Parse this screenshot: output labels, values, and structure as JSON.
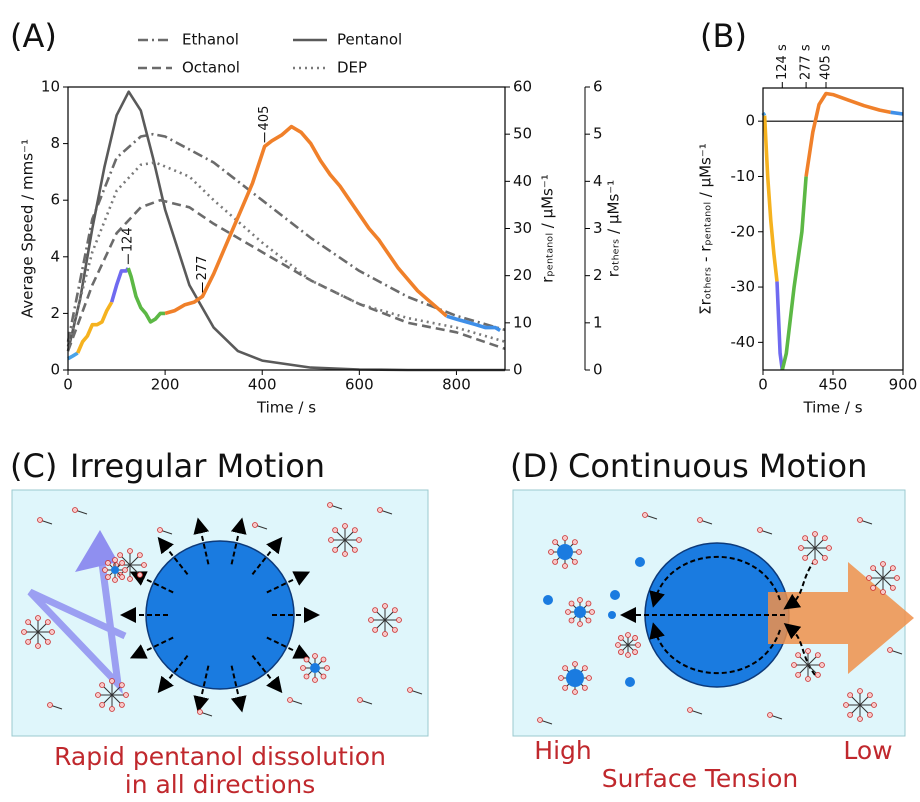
{
  "panel_labels": [
    "(A)",
    "(B)"
  ],
  "chart_data": [
    {
      "type": "line",
      "xlabel": "Time / s",
      "ylabel": "Average Speed / mms⁻¹",
      "y2label": "rₚₑₙₜₐₙₒₗ / μMs⁻¹",
      "y3label": "rₒₜₕₑᵣₛ / μMs⁻¹",
      "xlim": [
        0,
        900
      ],
      "xticks": [
        0,
        200,
        400,
        600,
        800
      ],
      "ylim": [
        0,
        10
      ],
      "yticks": [
        0,
        2,
        4,
        6,
        8,
        10
      ],
      "y2lim": [
        0,
        60
      ],
      "y2ticks": [
        0,
        10,
        20,
        30,
        40,
        50,
        60
      ],
      "y3lim": [
        0,
        6
      ],
      "y3ticks": [
        0,
        1,
        2,
        3,
        4,
        5,
        6
      ],
      "legend_loc": "top",
      "series": [
        {
          "name": "Ethanol",
          "color": "#6b6b6b",
          "dash": "dashdot",
          "axis": "y3",
          "x": [
            0,
            50,
            100,
            150,
            175,
            200,
            300,
            400,
            500,
            600,
            700,
            800,
            900
          ],
          "values": [
            0.6,
            3.2,
            4.5,
            4.95,
            5.0,
            4.95,
            4.4,
            3.6,
            2.8,
            2.1,
            1.55,
            1.15,
            0.85
          ]
        },
        {
          "name": "Pentanol",
          "color": "#5a5a5a",
          "dash": "solid",
          "axis": "y2",
          "x": [
            0,
            25,
            50,
            75,
            100,
            125,
            150,
            175,
            200,
            250,
            300,
            350,
            400,
            500,
            600,
            700,
            900
          ],
          "values": [
            4,
            15,
            30,
            43,
            54,
            59,
            55,
            45,
            34,
            18,
            9,
            4,
            2,
            0.5,
            0.1,
            0,
            0
          ]
        },
        {
          "name": "Octanol",
          "color": "#6b6b6b",
          "dash": "dash",
          "axis": "y3",
          "x": [
            0,
            50,
            100,
            150,
            190,
            250,
            300,
            400,
            500,
            600,
            700,
            800,
            900
          ],
          "values": [
            0.4,
            1.8,
            2.9,
            3.45,
            3.6,
            3.45,
            3.1,
            2.5,
            1.9,
            1.4,
            1.0,
            0.8,
            0.45
          ]
        },
        {
          "name": "DEP",
          "color": "#7a7a7a",
          "dash": "dot",
          "axis": "y3",
          "x": [
            0,
            50,
            100,
            150,
            180,
            250,
            300,
            400,
            500,
            600,
            700,
            800,
            900
          ],
          "values": [
            0.5,
            2.5,
            3.8,
            4.35,
            4.4,
            4.1,
            3.6,
            2.7,
            1.9,
            1.4,
            1.1,
            0.9,
            0.6
          ]
        },
        {
          "color": "#4aa3e8",
          "dash": "solid",
          "axis": "y",
          "x": [
            0,
            10,
            20
          ],
          "values": [
            0.4,
            0.5,
            0.6
          ]
        },
        {
          "color": "#f5b21f",
          "dash": "solid",
          "axis": "y",
          "x": [
            20,
            30,
            40,
            50,
            60,
            70,
            80,
            90
          ],
          "values": [
            0.6,
            1.0,
            1.2,
            1.6,
            1.6,
            1.7,
            2.1,
            2.4
          ]
        },
        {
          "color": "#6f6af0",
          "dash": "solid",
          "axis": "y",
          "x": [
            90,
            100,
            110,
            120,
            124
          ],
          "values": [
            2.4,
            3.0,
            3.5,
            3.5,
            3.6
          ]
        },
        {
          "color": "#5cb845",
          "dash": "solid",
          "axis": "y",
          "x": [
            124,
            130,
            140,
            150,
            160,
            170,
            180,
            190,
            200
          ],
          "values": [
            3.6,
            3.3,
            2.6,
            2.2,
            2.0,
            1.7,
            1.8,
            2.0,
            2.0
          ]
        },
        {
          "color": "#f0802a",
          "dash": "solid",
          "axis": "y",
          "x": [
            200,
            220,
            240,
            260,
            277,
            300,
            320,
            340,
            360,
            380,
            405,
            420,
            440,
            460,
            480,
            500,
            520,
            540,
            560,
            580,
            600,
            620,
            640,
            660,
            680,
            700,
            720,
            740,
            760,
            780
          ],
          "values": [
            2.0,
            2.1,
            2.3,
            2.4,
            2.6,
            3.4,
            4.2,
            5.0,
            5.8,
            6.6,
            7.9,
            8.1,
            8.3,
            8.6,
            8.4,
            8.0,
            7.4,
            6.9,
            6.5,
            6.0,
            5.5,
            5.0,
            4.6,
            4.1,
            3.6,
            3.2,
            2.8,
            2.5,
            2.2,
            1.9
          ]
        },
        {
          "color": "#3f8fe8",
          "dash": "solid",
          "axis": "y",
          "x": [
            780,
            800,
            820,
            840,
            860,
            880,
            890
          ],
          "values": [
            1.9,
            1.8,
            1.7,
            1.6,
            1.5,
            1.5,
            1.4
          ]
        }
      ],
      "annotations": [
        {
          "text": "124",
          "x": 124,
          "y": 3.6
        },
        {
          "text": "277",
          "x": 277,
          "y": 2.6
        },
        {
          "text": "405",
          "x": 405,
          "y": 7.9
        }
      ]
    },
    {
      "type": "line",
      "xlabel": "Time / s",
      "ylabel": "Σrₒₜₕₑᵣₛ - rₚₑₙₜₐₙₒₗ / μMs⁻¹",
      "xlim": [
        0,
        900
      ],
      "xticks": [
        0,
        450,
        900
      ],
      "ylim": [
        -45,
        6
      ],
      "yticks": [
        -40,
        -30,
        -20,
        -10,
        0
      ],
      "zero_line": true,
      "series": [
        {
          "color": "#4aa3e8",
          "x": [
            0,
            10
          ],
          "values": [
            1.5,
            1.0
          ]
        },
        {
          "color": "#f5b21f",
          "x": [
            10,
            30,
            50,
            70,
            90
          ],
          "values": [
            1.0,
            -10,
            -18,
            -24,
            -29
          ]
        },
        {
          "color": "#6f6af0",
          "x": [
            90,
            110,
            124
          ],
          "values": [
            -29,
            -42,
            -45
          ]
        },
        {
          "color": "#5cb845",
          "x": [
            124,
            150,
            200,
            250,
            277
          ],
          "values": [
            -45,
            -42,
            -30,
            -20,
            -10
          ]
        },
        {
          "color": "#f0802a",
          "x": [
            277,
            320,
            360,
            405,
            450,
            550,
            650,
            750,
            820
          ],
          "values": [
            -10,
            -2,
            3,
            5,
            4.8,
            3.8,
            2.8,
            2,
            1.6
          ]
        },
        {
          "color": "#3f8fe8",
          "x": [
            820,
            900
          ],
          "values": [
            1.6,
            1.3
          ]
        }
      ],
      "top_annotations": [
        {
          "text": "124 s",
          "x": 124
        },
        {
          "text": "277 s",
          "x": 277
        },
        {
          "text": "405 s",
          "x": 405
        }
      ]
    }
  ],
  "diagram_c": {
    "label": "(C)",
    "title": "Irregular Motion",
    "caption": [
      "Rapid pentanol dissolution",
      "in all directions"
    ]
  },
  "diagram_d": {
    "label": "(D)",
    "title": "Continuous Motion",
    "left_label": "High",
    "right_label": "Low",
    "caption": "Surface Tension"
  }
}
